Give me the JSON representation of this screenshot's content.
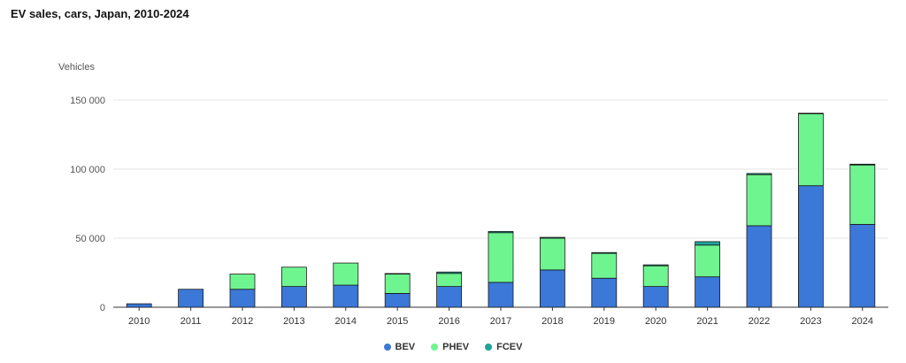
{
  "title": "EV sales, cars, Japan, 2010-2024",
  "y_unit": "Vehicles",
  "colors": {
    "BEV": "#3b78d8",
    "PHEV": "#6ef590",
    "FCEV": "#1fa39a",
    "grid": "#e6e6e6",
    "axis": "#333333",
    "outline": "#1a1a1a"
  },
  "legend": [
    {
      "label": "BEV",
      "color": "#3b78d8"
    },
    {
      "label": "PHEV",
      "color": "#6ef590"
    },
    {
      "label": "FCEV",
      "color": "#1fa39a"
    }
  ],
  "chart_data": {
    "type": "bar",
    "stacked": true,
    "title": "EV sales, cars, Japan, 2010-2024",
    "ylabel": "Vehicles",
    "xlabel": "",
    "ylim": [
      0,
      150000
    ],
    "yticks": [
      0,
      50000,
      100000,
      150000
    ],
    "ytick_labels": [
      "0",
      "50 000",
      "100 000",
      "150 000"
    ],
    "grid": true,
    "legend_position": "bottom",
    "categories": [
      "2010",
      "2011",
      "2012",
      "2013",
      "2014",
      "2015",
      "2016",
      "2017",
      "2018",
      "2019",
      "2020",
      "2021",
      "2022",
      "2023",
      "2024"
    ],
    "series": [
      {
        "name": "BEV",
        "values": [
          2500,
          13000,
          13000,
          15000,
          16000,
          10000,
          15000,
          18000,
          27000,
          21000,
          15000,
          22000,
          59000,
          88000,
          60000
        ]
      },
      {
        "name": "PHEV",
        "values": [
          0,
          0,
          11000,
          14000,
          16000,
          14000,
          9500,
          36000,
          23000,
          18000,
          15000,
          23000,
          37000,
          52000,
          43000
        ]
      },
      {
        "name": "FCEV",
        "values": [
          0,
          0,
          0,
          0,
          0,
          400,
          1000,
          850,
          600,
          600,
          700,
          2500,
          850,
          450,
          600
        ]
      }
    ]
  }
}
